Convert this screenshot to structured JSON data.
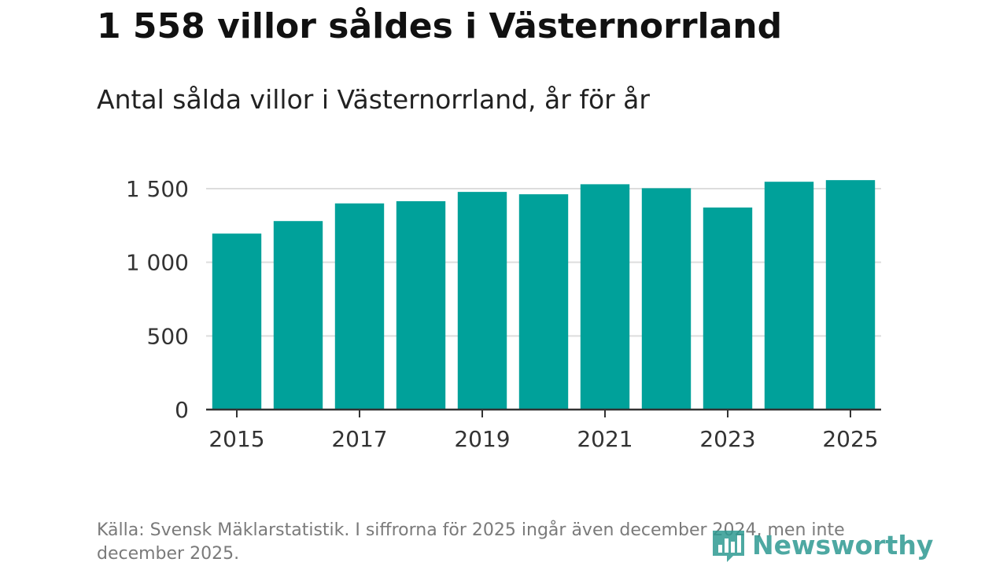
{
  "headline": "1 558 villor såldes i Västernorrland",
  "chart_data": {
    "type": "bar",
    "title": "Antal sålda villor i Västernorrland, år för år",
    "xlabel": "",
    "ylabel": "",
    "categories": [
      "2015",
      "2016",
      "2017",
      "2018",
      "2019",
      "2020",
      "2021",
      "2022",
      "2023",
      "2024",
      "2025"
    ],
    "values": [
      1195,
      1280,
      1400,
      1415,
      1478,
      1462,
      1530,
      1503,
      1372,
      1547,
      1558
    ],
    "ylim": [
      0,
      1500
    ],
    "y_ticks": [
      {
        "value": 0,
        "label": "0"
      },
      {
        "value": 500,
        "label": "500"
      },
      {
        "value": 1000,
        "label": "1 000"
      },
      {
        "value": 1500,
        "label": "1 500"
      }
    ],
    "x_tick_labels": [
      "2015",
      "2017",
      "2019",
      "2021",
      "2023",
      "2025"
    ],
    "grid": true,
    "bar_color": "#00a19a",
    "grid_color": "#dddddd",
    "axis_color": "#333333"
  },
  "footer": {
    "source_text": "Källa: Svensk Mäklarstatistik. I siffrorna för 2025 ingår även december 2024, men inte december 2025."
  },
  "brand": {
    "name": "Newsworthy",
    "icon": "newsworthy-logo-icon",
    "color": "#2e9a92"
  }
}
